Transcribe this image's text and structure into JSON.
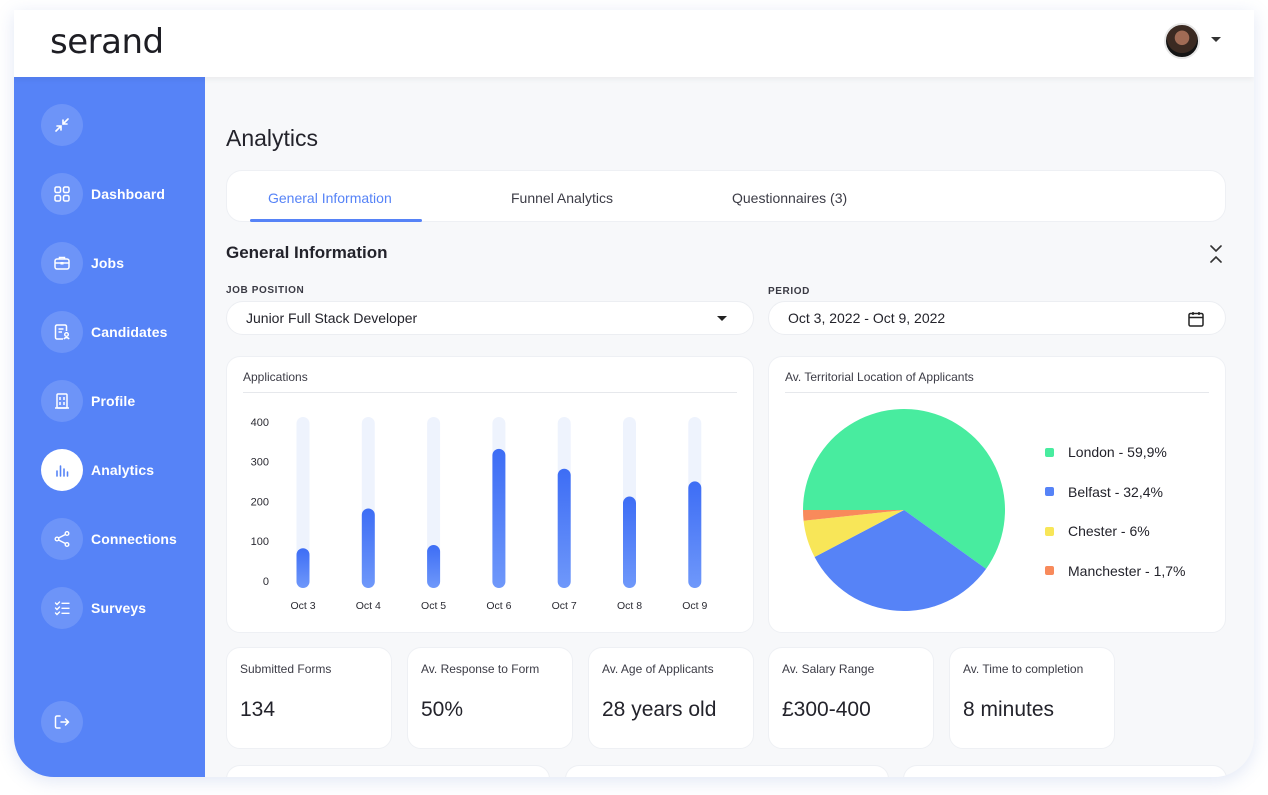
{
  "app": {
    "logo": "serand"
  },
  "sidebar": {
    "items": [
      {
        "label": "",
        "icon": "collapse-arrows-icon"
      },
      {
        "label": "Dashboard",
        "icon": "grid-icon"
      },
      {
        "label": "Jobs",
        "icon": "briefcase-icon"
      },
      {
        "label": "Candidates",
        "icon": "candidates-icon"
      },
      {
        "label": "Profile",
        "icon": "building-icon"
      },
      {
        "label": "Analytics",
        "icon": "bar-chart-icon"
      },
      {
        "label": "Connections",
        "icon": "share-icon"
      },
      {
        "label": "Surveys",
        "icon": "checklist-icon"
      }
    ],
    "logout_icon": "logout-icon",
    "accent": "#5683f7"
  },
  "page": {
    "title": "Analytics"
  },
  "tabs": [
    {
      "label": "General Information",
      "active": true
    },
    {
      "label": "Funnel Analytics",
      "active": false
    },
    {
      "label": "Questionnaires (3)",
      "active": false
    }
  ],
  "section": {
    "title": "General Information"
  },
  "filters": {
    "job_position": {
      "label": "JOB POSITION",
      "value": "Junior Full Stack Developer"
    },
    "period": {
      "label": "PERIOD",
      "value": "Oct 3, 2022 - Oct 9, 2022"
    }
  },
  "applications_card": {
    "title": "Applications"
  },
  "location_card": {
    "title": "Av. Territorial Location of Applicants"
  },
  "chart_data": [
    {
      "type": "bar",
      "title": "Applications",
      "categories": [
        "Oct 3",
        "Oct 4",
        "Oct 5",
        "Oct 6",
        "Oct 7",
        "Oct 8",
        "Oct 9"
      ],
      "values": [
        100,
        200,
        108,
        350,
        300,
        230,
        268
      ],
      "ylim": [
        0,
        430
      ],
      "yticks": [
        0,
        100,
        200,
        300,
        400
      ],
      "grid": false,
      "color": "#4f7df6",
      "track_color": "#eef3fd"
    },
    {
      "type": "pie",
      "title": "Av. Territorial Location of Applicants",
      "slices": [
        {
          "label": "London - 59,9%",
          "value": 59.9,
          "color": "#48ec9f"
        },
        {
          "label": "Belfast - 32,4%",
          "value": 32.4,
          "color": "#5683f7"
        },
        {
          "label": "Chester - 6%",
          "value": 6.0,
          "color": "#f8e658"
        },
        {
          "label": "Manchester - 1,7%",
          "value": 1.7,
          "color": "#f88a5b"
        }
      ],
      "legend_placement": "right"
    }
  ],
  "stats": [
    {
      "label": "Submitted Forms",
      "value": "134"
    },
    {
      "label": "Av. Response to Form",
      "value": "50%"
    },
    {
      "label": "Av. Age of Applicants",
      "value": "28 years old"
    },
    {
      "label": "Av. Salary Range",
      "value": "£300-400"
    },
    {
      "label": "Av. Time to completion",
      "value": "8 minutes"
    }
  ]
}
